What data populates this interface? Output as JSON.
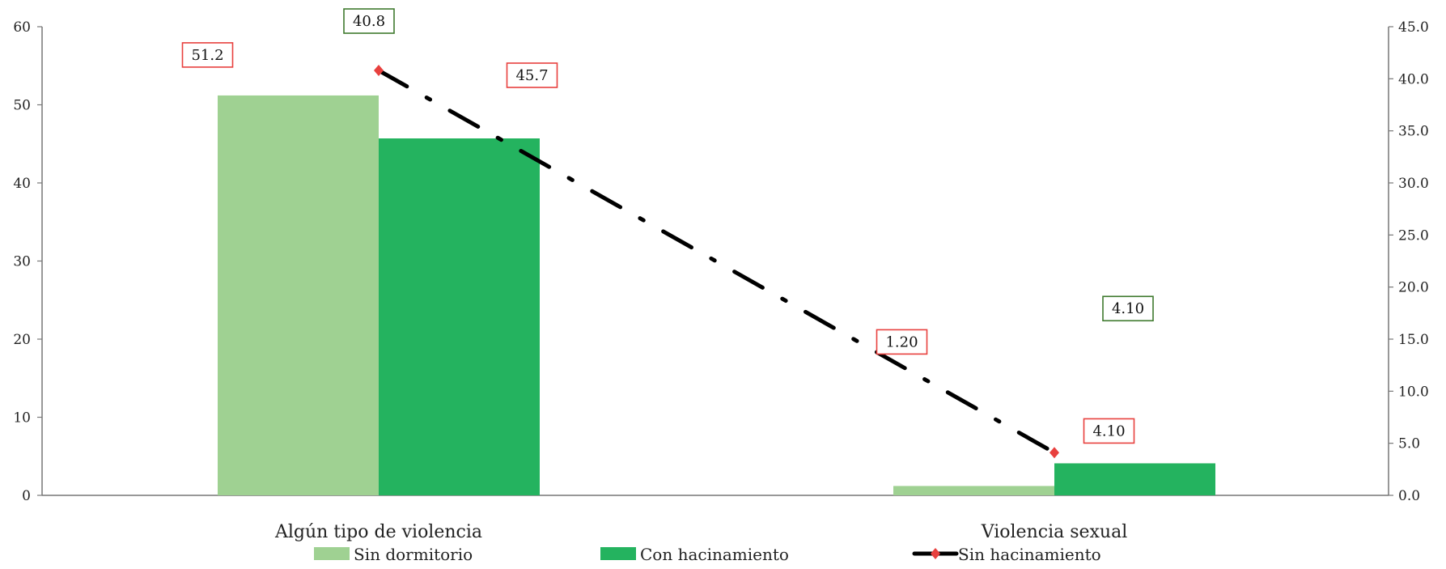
{
  "chart_data": {
    "type": "bar",
    "categories": [
      "Algún tipo de violencia",
      "Violencia sexual"
    ],
    "series": [
      {
        "name": "Sin dormitorio",
        "kind": "bar",
        "axis": "left",
        "color": "#9fd192",
        "values": [
          51.2,
          1.2
        ],
        "labels": [
          "51.2",
          "1.20"
        ]
      },
      {
        "name": "Con hacinamiento",
        "kind": "bar",
        "axis": "left",
        "color": "#24b35f",
        "values": [
          45.7,
          4.1
        ],
        "labels": [
          "45.7",
          "4.10"
        ]
      },
      {
        "name": "Sin hacinamiento",
        "kind": "line",
        "axis": "right",
        "color": "#000000",
        "marker_color": "#e8403e",
        "values": [
          40.8,
          4.1
        ],
        "labels": [
          "40.8",
          "4.10"
        ]
      }
    ],
    "y_left": {
      "min": 0,
      "max": 60,
      "ticks": [
        "0",
        "10",
        "20",
        "30",
        "40",
        "50",
        "60"
      ]
    },
    "y_right": {
      "min": 0,
      "max": 45,
      "ticks": [
        "0.0",
        "5.0",
        "10.0",
        "15.0",
        "20.0",
        "25.0",
        "30.0",
        "35.0",
        "40.0",
        "45.0"
      ]
    },
    "label_box_colors": {
      "bars": "#e8403e",
      "line": "#3f7a2e"
    },
    "grid": false,
    "legend": "bottom"
  }
}
